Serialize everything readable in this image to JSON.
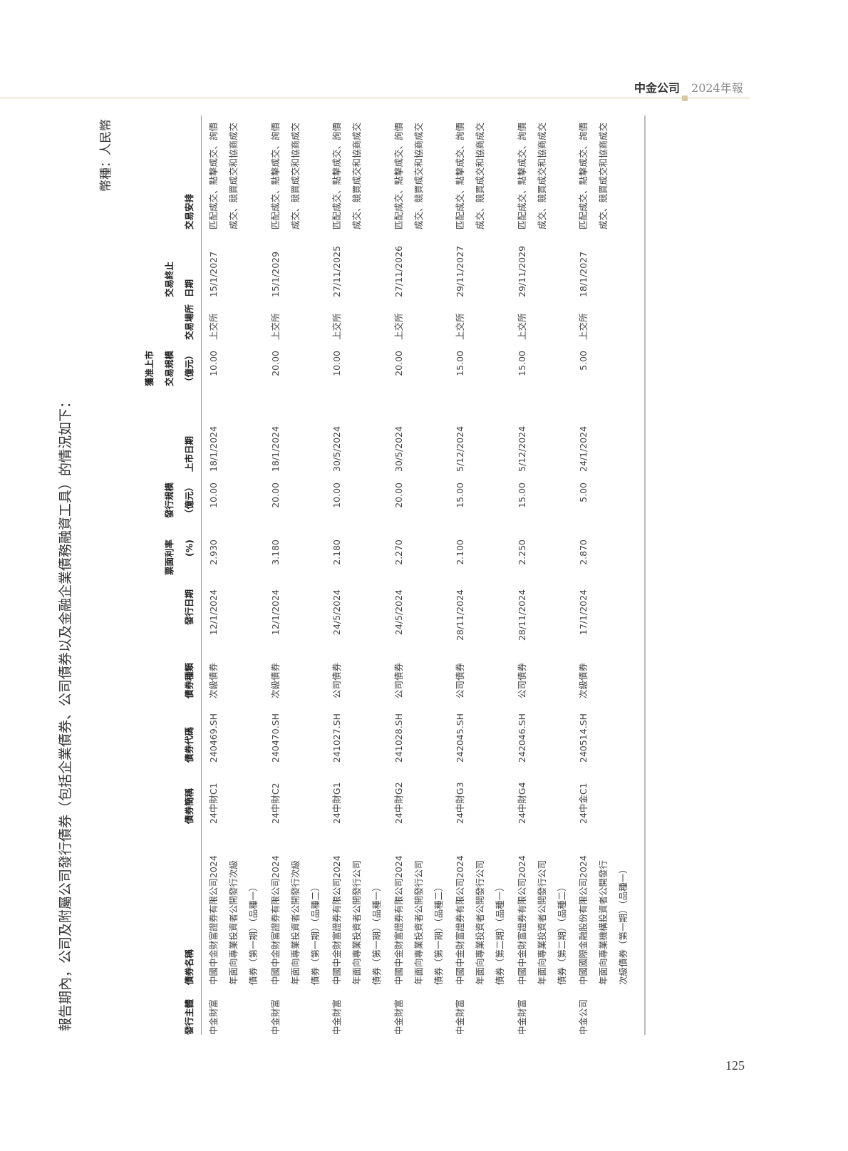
{
  "page_header": {
    "company": "中金公司",
    "report": "2024年報"
  },
  "page_number": "125",
  "intro": "報告期內，公司及附屬公司發行債券（包括企業債券、公司債券以及金融企業債務融資工具）的情況如下：",
  "currency": "幣種：人民幣",
  "columns": [
    {
      "lines": [
        "發行主體"
      ]
    },
    {
      "lines": [
        "債券名稱"
      ]
    },
    {
      "lines": [
        "債券簡稱"
      ]
    },
    {
      "lines": [
        "債券代碼"
      ]
    },
    {
      "lines": [
        "債券種類"
      ]
    },
    {
      "lines": [
        "發行日期"
      ]
    },
    {
      "lines": [
        "票面利率",
        "(%)"
      ]
    },
    {
      "lines": [
        "發行規模",
        "（億元）"
      ]
    },
    {
      "lines": [
        "上市日期"
      ]
    },
    {
      "lines": [
        "獲准上市",
        "交易規模",
        "（億元）"
      ]
    },
    {
      "lines": [
        "交易場所"
      ]
    },
    {
      "lines": [
        "交易終止",
        "日期"
      ]
    },
    {
      "lines": [
        "交易安排"
      ]
    }
  ],
  "rows": [
    {
      "issuer": "中金財富",
      "name": [
        "中國中金財富證券有限公司2024",
        "年面向專業投資者公開發行次級",
        "債券（第一期）（品種一）"
      ],
      "short": "24中財C1",
      "code": "240469.SH",
      "type": "次級債券",
      "issue_date": "12/1/2024",
      "rate": "2.930",
      "size": "10.00",
      "list_date": "18/1/2024",
      "approved": "10.00",
      "venue": "上交所",
      "end_date": "15/1/2027",
      "arr": [
        "匹配成交、點擊成交、詢價",
        "成交、競買成交和協商成交"
      ]
    },
    {
      "issuer": "中金財富",
      "name": [
        "中國中金財富證券有限公司2024",
        "年面向專業投資者公開發行次級",
        "債券（第一期）（品種二）"
      ],
      "short": "24中財C2",
      "code": "240470.SH",
      "type": "次級債券",
      "issue_date": "12/1/2024",
      "rate": "3.180",
      "size": "20.00",
      "list_date": "18/1/2024",
      "approved": "20.00",
      "venue": "上交所",
      "end_date": "15/1/2029",
      "arr": [
        "匹配成交、點擊成交、詢價",
        "成交、競買成交和協商成交"
      ]
    },
    {
      "issuer": "中金財富",
      "name": [
        "中國中金財富證券有限公司2024",
        "年面向專業投資者公開發行公司",
        "債券（第一期）（品種一）"
      ],
      "short": "24中財G1",
      "code": "241027.SH",
      "type": "公司債券",
      "issue_date": "24/5/2024",
      "rate": "2.180",
      "size": "10.00",
      "list_date": "30/5/2024",
      "approved": "10.00",
      "venue": "上交所",
      "end_date": "27/11/2025",
      "arr": [
        "匹配成交、點擊成交、詢價",
        "成交、競買成交和協商成交"
      ]
    },
    {
      "issuer": "中金財富",
      "name": [
        "中國中金財富證券有限公司2024",
        "年面向專業投資者公開發行公司",
        "債券（第一期）（品種二）"
      ],
      "short": "24中財G2",
      "code": "241028.SH",
      "type": "公司債券",
      "issue_date": "24/5/2024",
      "rate": "2.270",
      "size": "20.00",
      "list_date": "30/5/2024",
      "approved": "20.00",
      "venue": "上交所",
      "end_date": "27/11/2026",
      "arr": [
        "匹配成交、點擊成交、詢價",
        "成交、競買成交和協商成交"
      ]
    },
    {
      "issuer": "中金財富",
      "name": [
        "中國中金財富證券有限公司2024",
        "年面向專業投資者公開發行公司",
        "債券（第二期）（品種一）"
      ],
      "short": "24中財G3",
      "code": "242045.SH",
      "type": "公司債券",
      "issue_date": "28/11/2024",
      "rate": "2.100",
      "size": "15.00",
      "list_date": "5/12/2024",
      "approved": "15.00",
      "venue": "上交所",
      "end_date": "29/11/2027",
      "arr": [
        "匹配成交、點擊成交、詢價",
        "成交、競買成交和協商成交"
      ]
    },
    {
      "issuer": "中金財富",
      "name": [
        "中國中金財富證券有限公司2024",
        "年面向專業投資者公開發行公司",
        "債券（第二期）（品種二）"
      ],
      "short": "24中財G4",
      "code": "242046.SH",
      "type": "公司債券",
      "issue_date": "28/11/2024",
      "rate": "2.250",
      "size": "15.00",
      "list_date": "5/12/2024",
      "approved": "15.00",
      "venue": "上交所",
      "end_date": "29/11/2029",
      "arr": [
        "匹配成交、點擊成交、詢價",
        "成交、競買成交和協商成交"
      ]
    },
    {
      "issuer": "中金公司",
      "name": [
        "中國國際金融股份有限公司2024",
        "年面向專業機構投資者公開發行",
        "次級債券（第一期）（品種一）"
      ],
      "short": "24中金C1",
      "code": "240514.SH",
      "type": "次級債券",
      "issue_date": "17/1/2024",
      "rate": "2.870",
      "size": "5.00",
      "list_date": "24/1/2024",
      "approved": "5.00",
      "venue": "上交所",
      "end_date": "18/1/2027",
      "arr": [
        "匹配成交、點擊成交、詢價",
        "成交、競買成交和協商成交"
      ]
    }
  ]
}
